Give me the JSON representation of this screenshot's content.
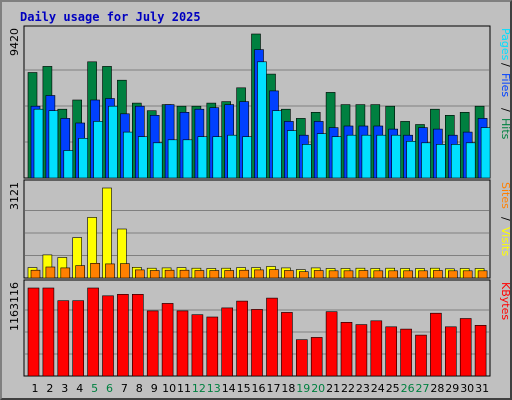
{
  "chart_data": {
    "type": "bar",
    "title": "Daily usage for July 2025",
    "categories": [
      "1",
      "2",
      "3",
      "4",
      "5",
      "6",
      "7",
      "8",
      "9",
      "10",
      "11",
      "12",
      "13",
      "14",
      "15",
      "16",
      "17",
      "18",
      "19",
      "20",
      "21",
      "22",
      "23",
      "24",
      "25",
      "26",
      "27",
      "28",
      "29",
      "30",
      "31"
    ],
    "weekend_days": [
      "5",
      "6",
      "12",
      "13",
      "19",
      "20",
      "26",
      "27"
    ],
    "colors": {
      "hits": "#008040",
      "files": "#0040ff",
      "pages": "#00e0ff",
      "visits": "#ffff00",
      "sites": "#ff8000",
      "kbytes": "#ff0000",
      "weekday_label": "#000000",
      "weekend_label": "#008040",
      "plot_bg": "#c0c0c0",
      "grid": "#808080",
      "title": "#0000c0"
    },
    "panels": [
      {
        "id": "hits_files_pages",
        "ymax_label": "9420",
        "ymax": 9420,
        "legend": [
          {
            "name": "Hits",
            "color": "#008040"
          },
          {
            "name": "Files",
            "color": "#0040ff"
          },
          {
            "name": "Pages",
            "color": "#00e0ff"
          }
        ],
        "series": [
          {
            "name": "Hits",
            "values": [
              6900,
              7300,
              4500,
              5100,
              7600,
              7300,
              6400,
              4900,
              4400,
              4800,
              4700,
              4700,
              4900,
              5000,
              5900,
              9420,
              6800,
              4500,
              3900,
              4300,
              5600,
              4800,
              4800,
              4800,
              4700,
              3700,
              3500,
              4500,
              4100,
              4300,
              4700
            ]
          },
          {
            "name": "Files",
            "values": [
              4700,
              5400,
              3900,
              3600,
              5100,
              5200,
              4200,
              4700,
              4100,
              4800,
              4300,
              4500,
              4600,
              4800,
              5000,
              8400,
              5700,
              3700,
              2800,
              3700,
              3300,
              3400,
              3400,
              3400,
              3200,
              2800,
              3300,
              3200,
              2800,
              3000,
              3900
            ]
          },
          {
            "name": "Pages",
            "values": [
              4500,
              4400,
              1800,
              2600,
              3700,
              4700,
              3000,
              2700,
              2300,
              2500,
              2500,
              2700,
              2700,
              2800,
              2700,
              7600,
              4400,
              3100,
              2200,
              2900,
              2700,
              2800,
              2800,
              2800,
              2800,
              2400,
              2300,
              2200,
              2200,
              2300,
              3300
            ]
          }
        ]
      },
      {
        "id": "visits_sites",
        "ymax_label": "3121",
        "ymax": 3121,
        "legend": [
          {
            "name": "Visits",
            "color": "#ffff00"
          },
          {
            "name": "Sites",
            "color": "#ff8000"
          }
        ],
        "series": [
          {
            "name": "Visits",
            "values": [
              360,
              800,
              710,
              1400,
              2100,
              3121,
              1700,
              370,
              340,
              350,
              360,
              340,
              330,
              340,
              360,
              360,
              400,
              350,
              290,
              350,
              330,
              330,
              340,
              330,
              340,
              330,
              330,
              340,
              320,
              330,
              330
            ]
          },
          {
            "name": "Sites",
            "values": [
              270,
              380,
              350,
              430,
              510,
              490,
              500,
              280,
              260,
              270,
              270,
              260,
              260,
              260,
              270,
              280,
              290,
              260,
              220,
              260,
              250,
              250,
              260,
              250,
              250,
              250,
              250,
              260,
              250,
              250,
              250
            ]
          }
        ]
      },
      {
        "id": "kbytes",
        "ymax_label": "1163116",
        "ymax": 1163116,
        "legend": [
          {
            "name": "KBytes",
            "color": "#ff0000"
          }
        ],
        "series": [
          {
            "name": "KBytes",
            "values": [
              1163116,
              1163116,
              995000,
              995000,
              1163116,
              1060000,
              1080000,
              1080000,
              860000,
              960000,
              860000,
              810000,
              780000,
              900000,
              990000,
              880000,
              1030000,
              840000,
              480000,
              510000,
              850000,
              710000,
              680000,
              730000,
              650000,
              620000,
              540000,
              830000,
              650000,
              760000,
              670000
            ]
          }
        ]
      }
    ],
    "kbytes_label": "KBytes",
    "grid": true
  }
}
